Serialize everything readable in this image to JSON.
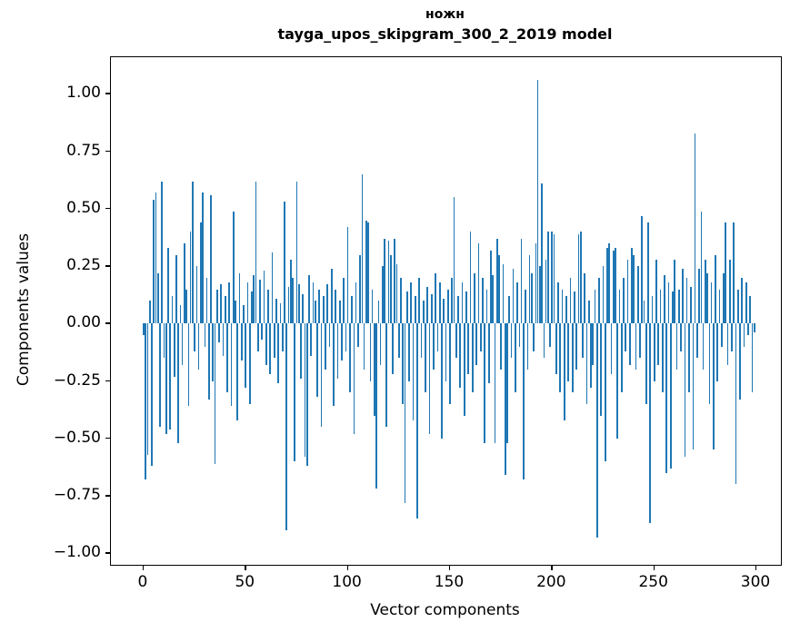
{
  "chart_data": {
    "type": "bar",
    "title": "ножн",
    "subtitle": "tayga_upos_skipgram_300_2_2019 model",
    "xlabel": "Vector components",
    "ylabel": "Components values",
    "xlim": [
      -16,
      312
    ],
    "ylim": [
      -1.05,
      1.16
    ],
    "x_ticks": [
      0,
      50,
      100,
      150,
      200,
      250,
      300
    ],
    "y_ticks": [
      -1.0,
      -0.75,
      -0.5,
      -0.25,
      0.0,
      0.25,
      0.5,
      0.75,
      1.0
    ],
    "bar_color": "#1f77b4",
    "grid": false,
    "legend": "none",
    "values": [
      -0.05,
      -0.68,
      -0.57,
      0.1,
      -0.62,
      0.54,
      0.57,
      0.22,
      -0.45,
      0.62,
      -0.15,
      -0.48,
      0.33,
      -0.46,
      0.12,
      -0.23,
      0.3,
      -0.52,
      0.08,
      -0.18,
      0.35,
      0.15,
      -0.36,
      0.4,
      0.62,
      -0.12,
      0.25,
      -0.2,
      0.44,
      0.57,
      -0.1,
      0.2,
      -0.33,
      0.56,
      -0.25,
      -0.61,
      0.15,
      -0.08,
      0.17,
      -0.14,
      0.12,
      -0.3,
      0.18,
      -0.36,
      0.49,
      0.1,
      -0.42,
      0.22,
      -0.16,
      0.08,
      -0.28,
      0.18,
      -0.35,
      0.14,
      0.21,
      0.62,
      -0.12,
      0.19,
      -0.07,
      0.23,
      -0.18,
      0.15,
      -0.22,
      0.31,
      -0.15,
      0.11,
      -0.26,
      0.09,
      -0.12,
      0.53,
      -0.9,
      0.16,
      0.28,
      0.2,
      -0.6,
      0.62,
      0.17,
      -0.24,
      0.13,
      -0.58,
      -0.62,
      0.21,
      -0.14,
      0.18,
      0.1,
      -0.32,
      0.15,
      -0.45,
      0.12,
      -0.2,
      0.17,
      -0.1,
      0.24,
      -0.36,
      0.15,
      -0.24,
      0.1,
      -0.16,
      0.2,
      -0.12,
      0.42,
      -0.3,
      0.12,
      -0.48,
      0.18,
      -0.1,
      0.3,
      0.65,
      -0.2,
      0.45,
      0.44,
      -0.25,
      0.15,
      -0.4,
      -0.72,
      0.1,
      -0.18,
      0.25,
      0.37,
      -0.45,
      0.36,
      0.3,
      -0.22,
      0.37,
      0.26,
      -0.15,
      0.2,
      -0.35,
      -0.78,
      0.14,
      -0.25,
      0.18,
      -0.42,
      0.12,
      -0.85,
      0.2,
      -0.15,
      0.1,
      -0.3,
      0.16,
      -0.48,
      0.13,
      -0.2,
      0.22,
      -0.12,
      0.18,
      -0.5,
      0.11,
      -0.25,
      0.15,
      -0.35,
      0.2,
      0.55,
      -0.15,
      0.12,
      -0.28,
      0.18,
      -0.4,
      0.14,
      -0.22,
      0.4,
      -0.3,
      0.22,
      -0.18,
      0.35,
      -0.12,
      0.2,
      -0.52,
      0.15,
      -0.26,
      0.32,
      0.21,
      -0.52,
      0.37,
      0.3,
      -0.2,
      0.26,
      -0.66,
      -0.52,
      0.12,
      -0.15,
      0.24,
      -0.3,
      0.18,
      -0.1,
      0.37,
      -0.68,
      0.15,
      -0.2,
      0.3,
      0.22,
      -0.12,
      0.35,
      1.06,
      0.25,
      0.61,
      -0.15,
      0.28,
      0.4,
      -0.1,
      0.4,
      0.39,
      -0.22,
      0.18,
      -0.3,
      0.15,
      -0.42,
      0.12,
      -0.25,
      0.2,
      -0.3,
      0.14,
      -0.2,
      0.39,
      0.4,
      -0.15,
      0.22,
      -0.35,
      0.1,
      -0.28,
      -0.18,
      0.15,
      -0.93,
      0.2,
      -0.4,
      0.25,
      -0.6,
      0.33,
      0.35,
      -0.22,
      0.32,
      0.33,
      -0.5,
      0.15,
      -0.3,
      0.2,
      -0.12,
      0.28,
      -0.18,
      0.33,
      0.3,
      -0.2,
      0.25,
      -0.15,
      0.47,
      0.1,
      -0.35,
      0.44,
      -0.87,
      0.12,
      -0.25,
      0.28,
      -0.18,
      0.15,
      -0.3,
      0.21,
      -0.65,
      0.18,
      -0.63,
      0.14,
      0.28,
      -0.2,
      0.15,
      -0.12,
      0.24,
      -0.58,
      0.2,
      -0.3,
      0.16,
      -0.55,
      0.83,
      -0.15,
      0.24,
      0.49,
      -0.2,
      0.28,
      0.22,
      -0.35,
      0.18,
      -0.55,
      0.3,
      -0.25,
      0.15,
      -0.1,
      0.22,
      0.44,
      -0.18,
      0.28,
      -0.12,
      0.44,
      -0.7,
      0.15,
      -0.33,
      0.2,
      -0.1,
      0.18,
      -0.05,
      0.12,
      -0.3,
      -0.04
    ]
  }
}
